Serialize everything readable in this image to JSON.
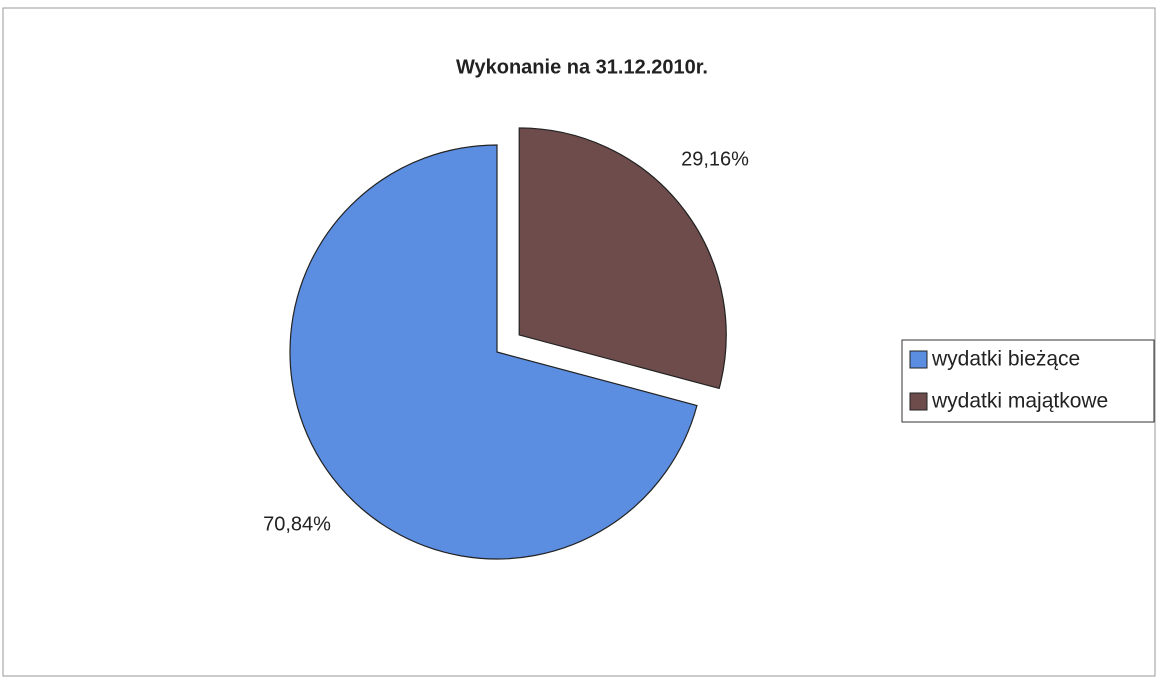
{
  "chart_data": {
    "type": "pie",
    "title": "Wykonanie na 31.12.2010r.",
    "categories": [
      "wydatki bieżące",
      "wydatki majątkowe"
    ],
    "values": [
      70.84,
      29.16
    ],
    "value_labels": [
      "70,84%",
      "29,16%"
    ],
    "colors": [
      "#5b8de0",
      "#6e4c4c"
    ],
    "legend": "right"
  }
}
